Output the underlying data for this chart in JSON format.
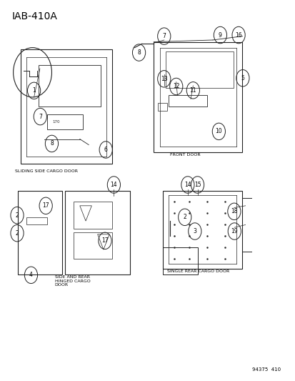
{
  "title": "IAB-410A",
  "bg_color": "#ffffff",
  "fig_width": 4.14,
  "fig_height": 5.33,
  "dpi": 100,
  "labels": {
    "sliding_side": "SLIDING SIDE CARGO DOOR",
    "front_door": "FRONT DOOR",
    "side_rear": "SIDE AND REAR\nHINGED CARGO\nDOOR",
    "single_rear": "SINGLE REAR CARGO DOOR",
    "part_num": "94375  410"
  },
  "text_color": "#000000",
  "line_color": "#222222"
}
